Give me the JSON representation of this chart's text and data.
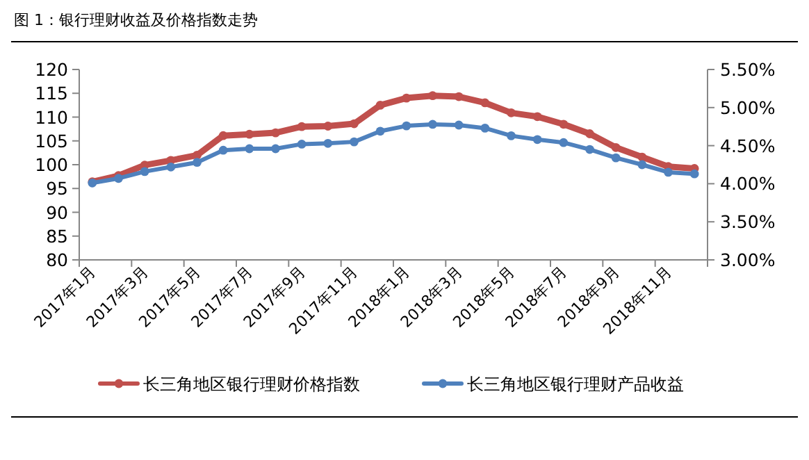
{
  "chart_data": {
    "type": "line",
    "title": "图 1：银行理财收益及价格指数走势",
    "categories": [
      "2017年1月",
      null,
      "2017年3月",
      null,
      "2017年5月",
      null,
      "2017年7月",
      null,
      "2017年9月",
      null,
      "2017年11月",
      null,
      "2018年1月",
      null,
      "2018年3月",
      null,
      "2018年5月",
      null,
      "2018年7月",
      null,
      "2018年9月",
      null,
      "2018年11月",
      null
    ],
    "series": [
      {
        "name": "长三角地区银行理财价格指数",
        "color": "#c0504d",
        "values": [
          96.4,
          97.7,
          99.9,
          100.9,
          102.0,
          106.1,
          106.4,
          106.7,
          108.0,
          108.1,
          108.6,
          112.5,
          114.0,
          114.5,
          114.3,
          113.0,
          110.9,
          110.1,
          108.5,
          106.5,
          103.6,
          101.6,
          99.6,
          99.2
        ]
      },
      {
        "name": "长三角地区银行理财产品收益",
        "color": "#4f81bd",
        "axis": "y2",
        "values": [
          4.01,
          4.07,
          4.16,
          4.22,
          4.28,
          4.44,
          4.46,
          4.46,
          4.52,
          4.53,
          4.55,
          4.69,
          4.76,
          4.78,
          4.77,
          4.73,
          4.63,
          4.58,
          4.54,
          4.45,
          4.34,
          4.25,
          4.15,
          4.13
        ]
      }
    ],
    "ylim": [
      80,
      120
    ],
    "yticks": [
      80,
      85,
      90,
      95,
      100,
      105,
      110,
      115,
      120
    ],
    "y2lim": [
      3.0,
      5.5
    ],
    "y2ticks": [
      {
        "value": 3.0,
        "label": "3.00%"
      },
      {
        "value": 3.5,
        "label": "3.50%"
      },
      {
        "value": 4.0,
        "label": "4.00%"
      },
      {
        "value": 4.5,
        "label": "4.50%"
      },
      {
        "value": 5.0,
        "label": "5.00%"
      },
      {
        "value": 5.5,
        "label": "5.50%"
      }
    ],
    "grid": false,
    "legend": "bottom",
    "marker": "circle",
    "line_style": "solid"
  }
}
